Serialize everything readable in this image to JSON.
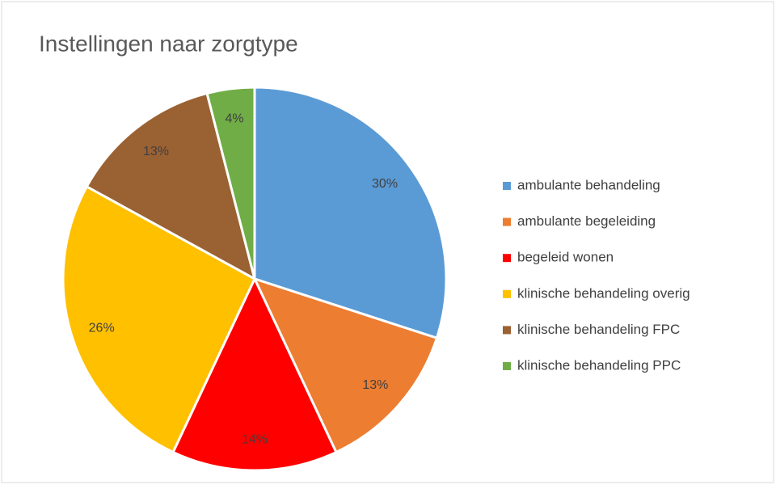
{
  "chart_data": {
    "type": "pie",
    "title": "Instellingen naar zorgtype",
    "categories": [
      "ambulante behandeling",
      "ambulante begeleiding",
      "begeleid wonen",
      "klinische behandeling overig",
      "klinische behandeling FPC",
      "klinische behandeling PPC"
    ],
    "values": [
      30,
      13,
      14,
      26,
      13,
      4
    ],
    "value_labels": [
      "30%",
      "13%",
      "14%",
      "26%",
      "13%",
      "4%"
    ],
    "colors": [
      "#5b9bd5",
      "#ed7d31",
      "#ff0000",
      "#ffc000",
      "#9a6132",
      "#70ad47"
    ],
    "legend": "right"
  }
}
